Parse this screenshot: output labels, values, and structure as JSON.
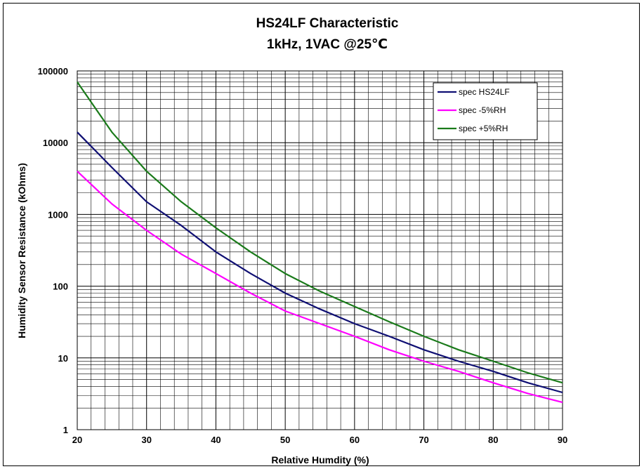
{
  "chart_data": {
    "type": "line",
    "title": "HS24LF Characteristic",
    "subtitle": "1kHz, 1VAC @25℃",
    "xlabel": "Relative Humdity (%)",
    "ylabel": "Humidity Sensor Resistance (kOhms)",
    "xlim": [
      20,
      90
    ],
    "ylim": [
      1,
      100000
    ],
    "yscale": "log",
    "grid": true,
    "legend_position": "top-right",
    "x_ticks": [
      "20",
      "30",
      "40",
      "50",
      "60",
      "70",
      "80",
      "90"
    ],
    "y_ticks": [
      "1",
      "10",
      "100",
      "1000",
      "10000",
      "100000"
    ],
    "x": [
      20,
      25,
      30,
      35,
      40,
      45,
      50,
      55,
      60,
      65,
      70,
      75,
      80,
      85,
      90
    ],
    "series": [
      {
        "name": "spec HS24LF",
        "color": "#0f0f73",
        "values": [
          14000,
          4500,
          1500,
          700,
          300,
          150,
          80,
          48,
          30,
          20,
          13,
          9,
          6.5,
          4.5,
          3.3
        ]
      },
      {
        "name": "spec -5%RH",
        "color": "#ff00ff",
        "values": [
          4000,
          1400,
          600,
          280,
          150,
          80,
          45,
          30,
          20,
          13,
          9,
          6.5,
          4.5,
          3.2,
          2.4
        ]
      },
      {
        "name": "spec +5%RH",
        "color": "#1a7a1a",
        "values": [
          70000,
          14000,
          4000,
          1500,
          650,
          300,
          150,
          85,
          52,
          32,
          20,
          13,
          9,
          6.2,
          4.5
        ]
      }
    ]
  }
}
